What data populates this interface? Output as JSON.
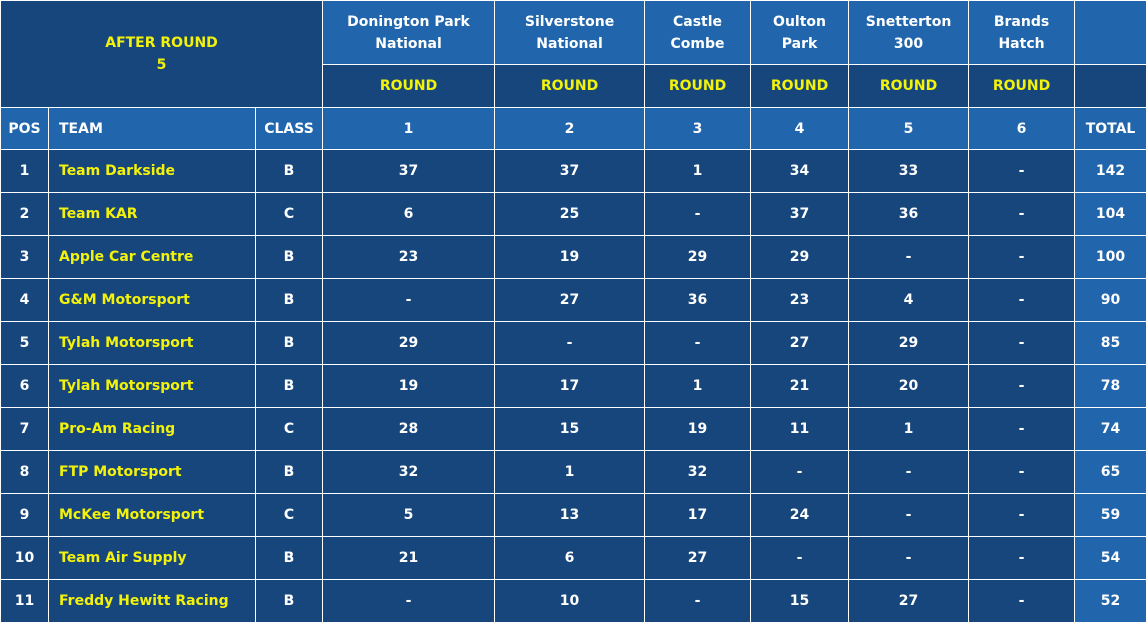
{
  "after_round": {
    "line1": "AFTER ROUND",
    "line2": "5"
  },
  "tracks": [
    {
      "line1": "Donington Park",
      "line2": "National"
    },
    {
      "line1": "Silverstone",
      "line2": "National"
    },
    {
      "line1": "Castle",
      "line2": "Combe"
    },
    {
      "line1": "Oulton",
      "line2": "Park"
    },
    {
      "line1": "Snetterton",
      "line2": "300"
    },
    {
      "line1": "Brands",
      "line2": "Hatch"
    }
  ],
  "round_label": "ROUND",
  "columns": {
    "pos": "POS",
    "team": "TEAM",
    "class": "CLASS",
    "rounds": [
      "1",
      "2",
      "3",
      "4",
      "5",
      "6"
    ],
    "total": "TOTAL"
  },
  "rows": [
    {
      "pos": "1",
      "team": "Team Darkside",
      "class": "B",
      "r": [
        "37",
        "37",
        "1",
        "34",
        "33",
        "-"
      ],
      "total": "142"
    },
    {
      "pos": "2",
      "team": "Team KAR",
      "class": "C",
      "r": [
        "6",
        "25",
        "-",
        "37",
        "36",
        "-"
      ],
      "total": "104"
    },
    {
      "pos": "3",
      "team": "Apple Car Centre",
      "class": "B",
      "r": [
        "23",
        "19",
        "29",
        "29",
        "-",
        "-"
      ],
      "total": "100"
    },
    {
      "pos": "4",
      "team": "G&M Motorsport",
      "class": "B",
      "r": [
        "-",
        "27",
        "36",
        "23",
        "4",
        "-"
      ],
      "total": "90"
    },
    {
      "pos": "5",
      "team": "Tylah Motorsport",
      "class": "B",
      "r": [
        "29",
        "-",
        "-",
        "27",
        "29",
        "-"
      ],
      "total": "85"
    },
    {
      "pos": "6",
      "team": "Tylah Motorsport",
      "class": "B",
      "r": [
        "19",
        "17",
        "1",
        "21",
        "20",
        "-"
      ],
      "total": "78"
    },
    {
      "pos": "7",
      "team": "Pro-Am Racing",
      "class": "C",
      "r": [
        "28",
        "15",
        "19",
        "11",
        "1",
        "-"
      ],
      "total": "74"
    },
    {
      "pos": "8",
      "team": "FTP Motorsport",
      "class": "B",
      "r": [
        "32",
        "1",
        "32",
        "-",
        "-",
        "-"
      ],
      "total": "65"
    },
    {
      "pos": "9",
      "team": "McKee Motorsport",
      "class": "C",
      "r": [
        "5",
        "13",
        "17",
        "24",
        "-",
        "-"
      ],
      "total": "59"
    },
    {
      "pos": "10",
      "team": "Team Air Supply",
      "class": "B",
      "r": [
        "21",
        "6",
        "27",
        "-",
        "-",
        "-"
      ],
      "total": "54"
    },
    {
      "pos": "11",
      "team": "Freddy Hewitt Racing",
      "class": "B",
      "r": [
        "-",
        "10",
        "-",
        "15",
        "27",
        "-"
      ],
      "total": "52"
    }
  ]
}
